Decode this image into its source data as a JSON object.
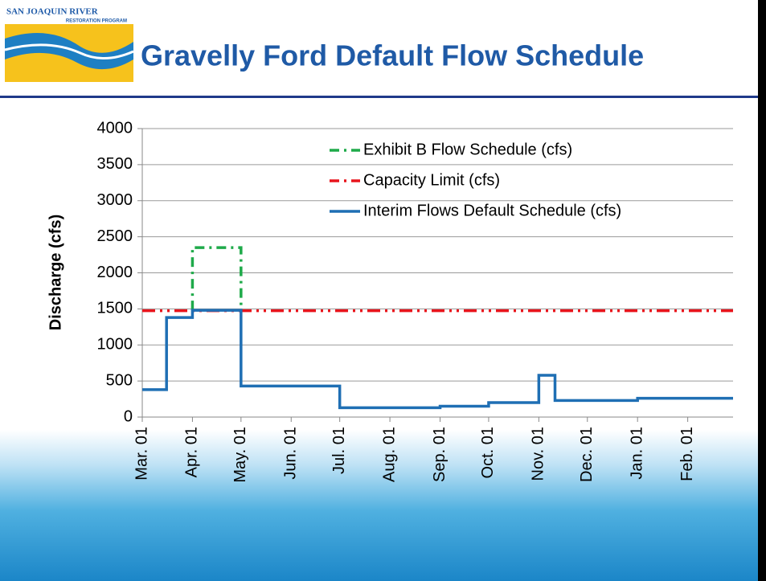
{
  "header": {
    "title": "Gravelly Ford Default Flow Schedule",
    "logo_line1": "SAN JOAQUIN RIVER",
    "logo_line2": "RESTORATION PROGRAM"
  },
  "chart_data": {
    "type": "line",
    "ylabel": "Discharge (cfs)",
    "xlim": [
      0,
      365
    ],
    "ylim": [
      0,
      4000
    ],
    "yticks": [
      0,
      500,
      1000,
      1500,
      2000,
      2500,
      3000,
      3500,
      4000
    ],
    "xticks": [
      {
        "value": 0,
        "label": "Mar. 01"
      },
      {
        "value": 31,
        "label": "Apr. 01"
      },
      {
        "value": 61,
        "label": "May. 01"
      },
      {
        "value": 92,
        "label": "Jun. 01"
      },
      {
        "value": 122,
        "label": "Jul. 01"
      },
      {
        "value": 153,
        "label": "Aug. 01"
      },
      {
        "value": 184,
        "label": "Sep. 01"
      },
      {
        "value": 214,
        "label": "Oct. 01"
      },
      {
        "value": 245,
        "label": "Nov. 01"
      },
      {
        "value": 275,
        "label": "Dec. 01"
      },
      {
        "value": 306,
        "label": "Jan. 01"
      },
      {
        "value": 337,
        "label": "Feb. 01"
      }
    ],
    "grid": true,
    "legend": "top-right",
    "series": [
      {
        "name": "Exhibit B Flow Schedule (cfs)",
        "color": "#1faa4a",
        "dash": "12 6 3 6",
        "x": [
          31,
          31,
          61,
          61
        ],
        "values": [
          1480,
          2350,
          2350,
          1480
        ]
      },
      {
        "name": "Capacity Limit (cfs)",
        "color": "#e8141c",
        "dash": "16 6 3 6 3 6",
        "x": [
          0,
          365
        ],
        "values": [
          1475,
          1475
        ]
      },
      {
        "name": "Interim Flows Default Schedule (cfs)",
        "color": "#1f6fb4",
        "dash": "none",
        "x": [
          0,
          15,
          15,
          31,
          31,
          61,
          61,
          122,
          122,
          184,
          184,
          214,
          214,
          245,
          245,
          255,
          255,
          306,
          306,
          365
        ],
        "values": [
          380,
          380,
          1380,
          1380,
          1480,
          1480,
          430,
          430,
          130,
          130,
          150,
          150,
          200,
          200,
          580,
          580,
          230,
          230,
          260,
          260
        ]
      }
    ]
  }
}
